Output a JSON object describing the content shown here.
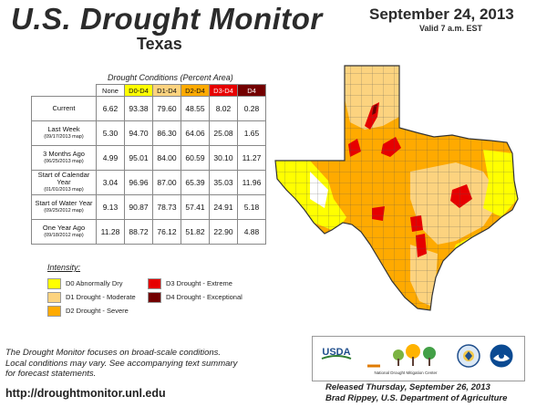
{
  "header": {
    "title": "U.S. Drought Monitor",
    "region": "Texas",
    "date": "September 24, 2013",
    "valid": "Valid 7 a.m. EST"
  },
  "table": {
    "title": "Drought Conditions (Percent Area)",
    "columns": [
      "None",
      "D0-D4",
      "D1-D4",
      "D2-D4",
      "D3-D4",
      "D4"
    ],
    "column_colors": [
      "#ffffff",
      "#ffff00",
      "#fcd37f",
      "#ffaa00",
      "#e60000",
      "#730000"
    ],
    "rows": [
      {
        "label": "Current",
        "sub": "",
        "values": [
          "6.62",
          "93.38",
          "79.60",
          "48.55",
          "8.02",
          "0.28"
        ]
      },
      {
        "label": "Last Week",
        "sub": "(09/17/2013 map)",
        "values": [
          "5.30",
          "94.70",
          "86.30",
          "64.06",
          "25.08",
          "1.65"
        ]
      },
      {
        "label": "3 Months Ago",
        "sub": "(06/25/2013 map)",
        "values": [
          "4.99",
          "95.01",
          "84.00",
          "60.59",
          "30.10",
          "11.27"
        ]
      },
      {
        "label": "Start of Calendar Year",
        "sub": "(01/01/2013 map)",
        "values": [
          "3.04",
          "96.96",
          "87.00",
          "65.39",
          "35.03",
          "11.96"
        ]
      },
      {
        "label": "Start of Water Year",
        "sub": "(09/25/2012 map)",
        "values": [
          "9.13",
          "90.87",
          "78.73",
          "57.41",
          "24.91",
          "5.18"
        ]
      },
      {
        "label": "One Year Ago",
        "sub": "(09/18/2012 map)",
        "values": [
          "11.28",
          "88.72",
          "76.12",
          "51.82",
          "22.90",
          "4.88"
        ]
      }
    ]
  },
  "legend": {
    "title": "Intensity:",
    "items": [
      {
        "label": "D0 Abnormally Dry",
        "color": "#ffff00"
      },
      {
        "label": "D1 Drought - Moderate",
        "color": "#fcd37f"
      },
      {
        "label": "D2 Drought - Severe",
        "color": "#ffaa00"
      },
      {
        "label": "D3 Drought - Extreme",
        "color": "#e60000"
      },
      {
        "label": "D4 Drought - Exceptional",
        "color": "#730000"
      }
    ]
  },
  "note": {
    "line1": "The Drought Monitor focuses on broad-scale conditions.",
    "line2": "Local conditions may vary. See accompanying text summary",
    "line3": "for forecast statements."
  },
  "url": "http://droughtmonitor.unl.edu",
  "footer": {
    "released": "Released Thursday, September 26, 2013",
    "author": "Brad Rippey, U.S. Department of Agriculture"
  },
  "logos": {
    "usda": "USDA",
    "ndmc": "National Drought Mitigation Center"
  }
}
